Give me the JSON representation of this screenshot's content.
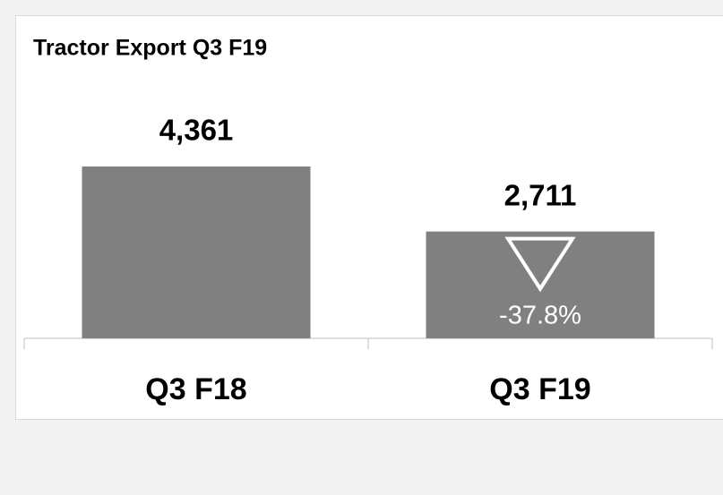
{
  "chart_data": {
    "type": "bar",
    "title": "Tractor Export Q3 F19",
    "categories": [
      "Q3 F18",
      "Q3 F19"
    ],
    "values": [
      4361,
      2711
    ],
    "value_labels": [
      "4,361",
      "2,711"
    ],
    "color": "#808080",
    "annotation": "-37.8%"
  }
}
